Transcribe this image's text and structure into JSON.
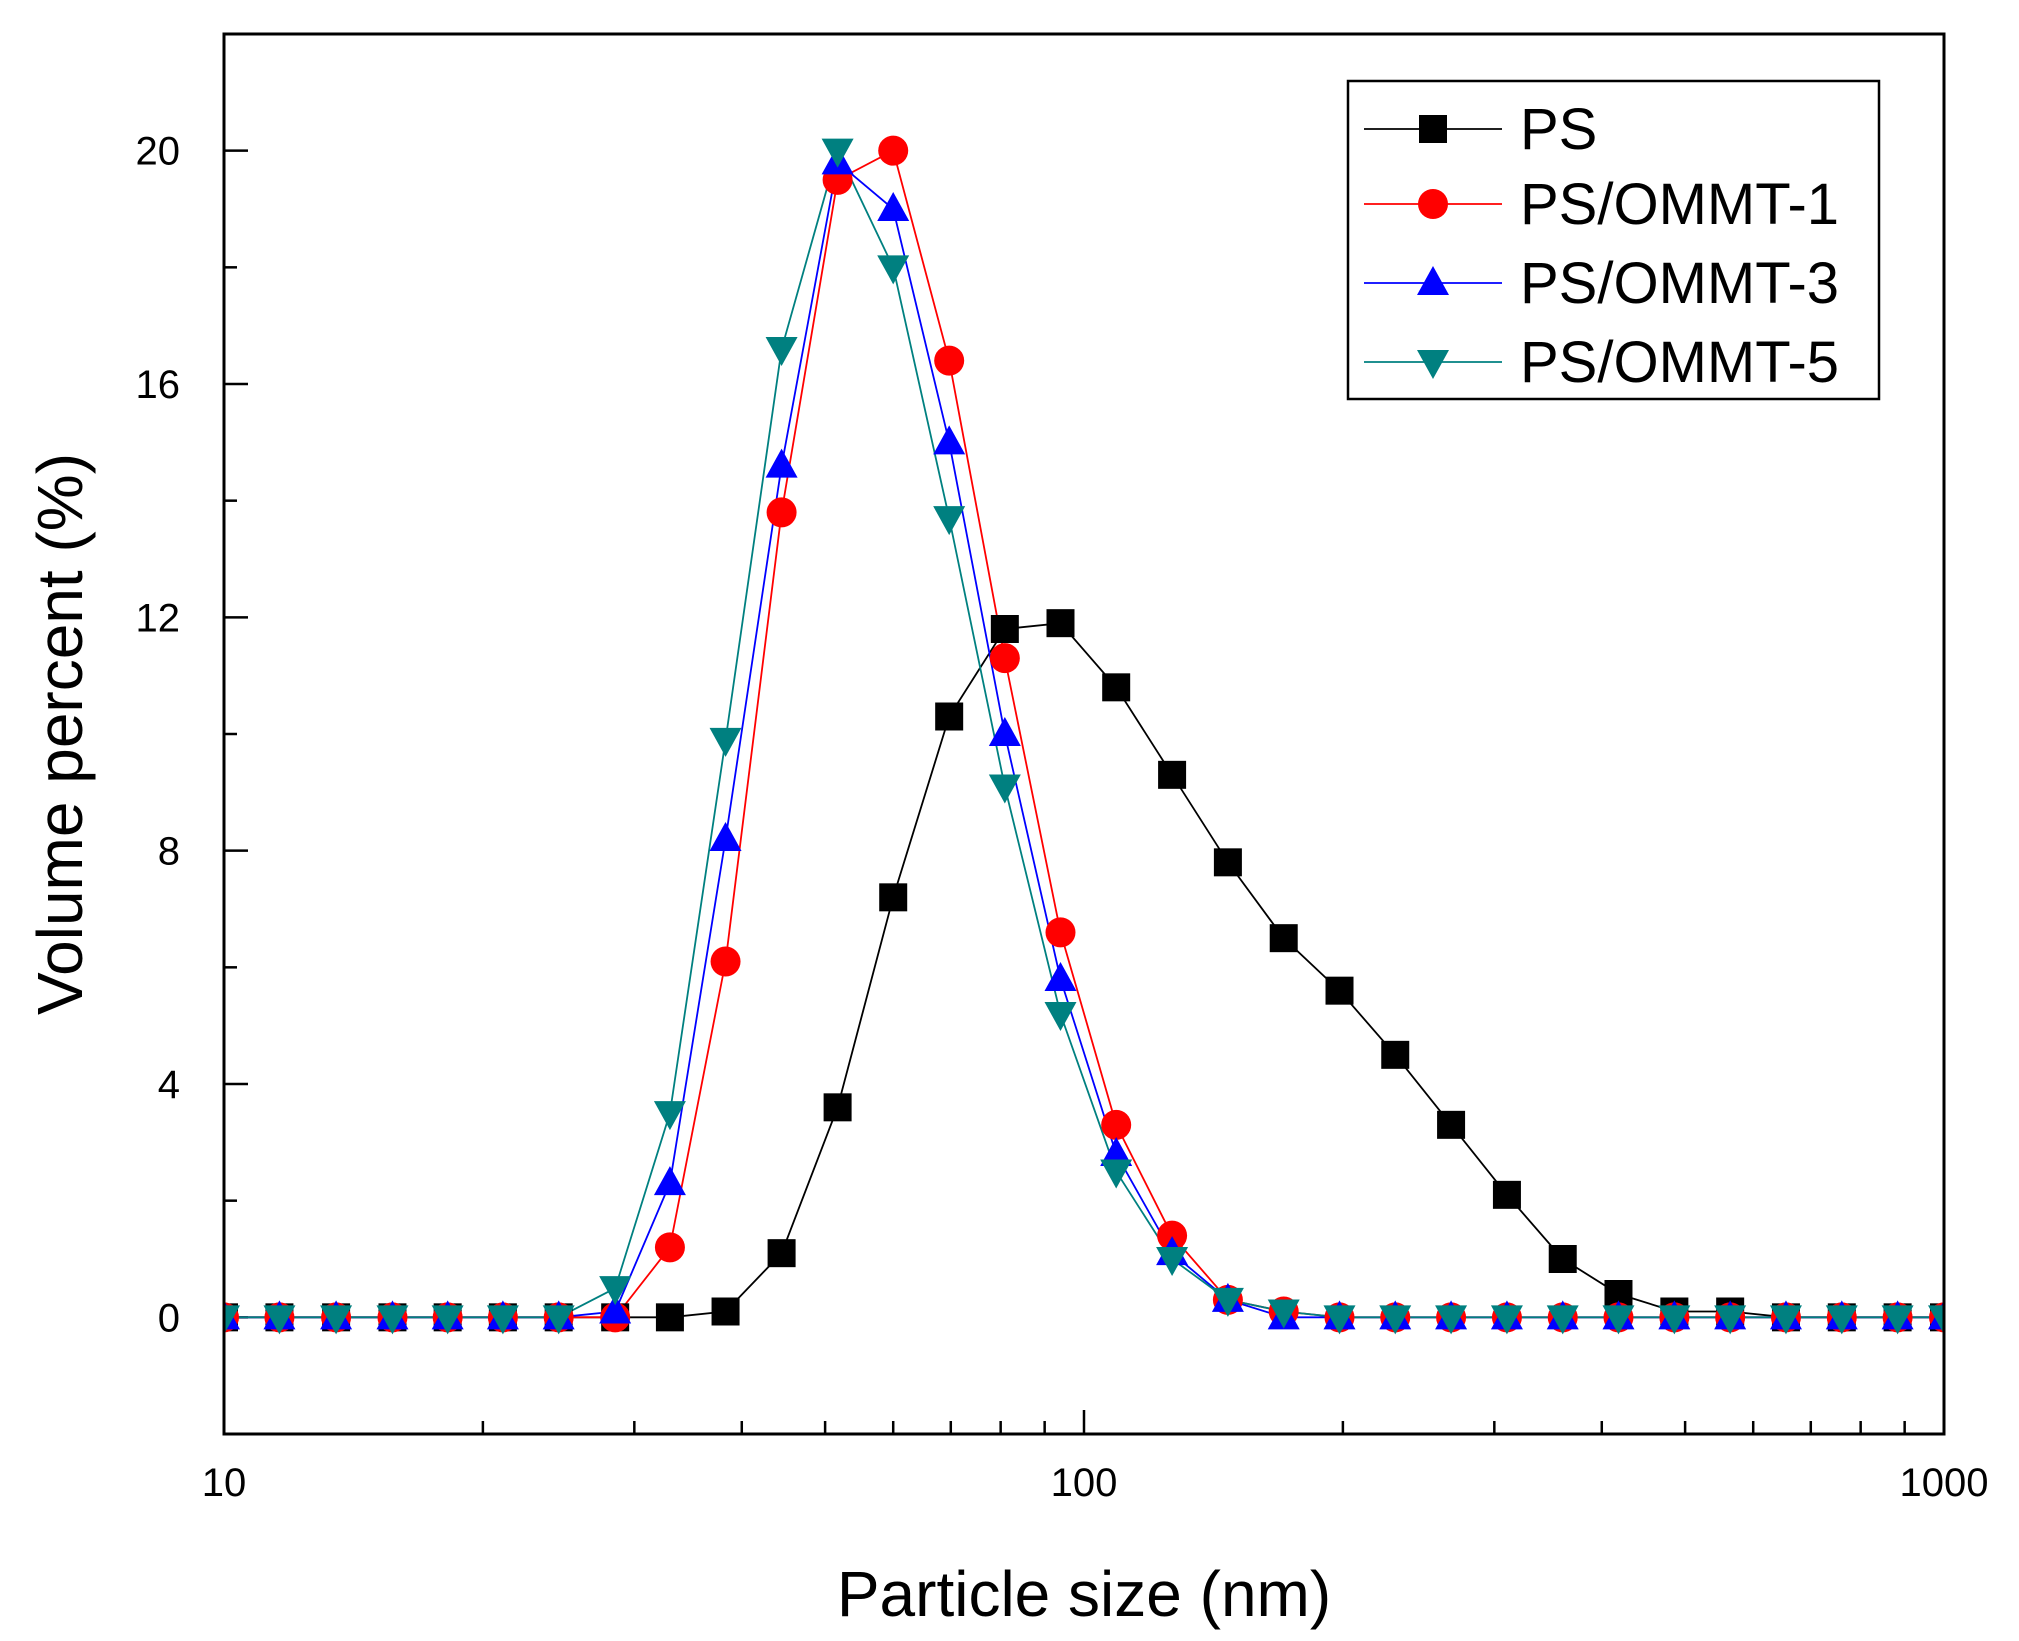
{
  "chart_data": {
    "type": "line",
    "title": "",
    "xlabel": "Particle size (nm)",
    "ylabel": "Volume percent (%)",
    "xscale": "log",
    "xlim": [
      10,
      1000
    ],
    "ylim": [
      -2,
      22
    ],
    "xticks": [
      10,
      100,
      1000
    ],
    "xtick_labels": [
      "10",
      "100",
      "1000"
    ],
    "yticks": [
      0,
      4,
      8,
      12,
      16,
      20
    ],
    "ytick_labels": [
      "0",
      "4",
      "8",
      "12",
      "16",
      "20"
    ],
    "grid": false,
    "legend_position": "top-right",
    "x": [
      10,
      11.6,
      13.5,
      15.7,
      18.2,
      21.1,
      24.5,
      28.5,
      33,
      38.3,
      44.5,
      51.7,
      60,
      69.7,
      80.9,
      93.9,
      109,
      126.6,
      147,
      170.7,
      198.2,
      230.1,
      267.2,
      310.3,
      360.3,
      418.3,
      485.8,
      564.1,
      655,
      760.6,
      883.2,
      1000
    ],
    "series": [
      {
        "name": "PS",
        "color": "#000000",
        "marker": "square",
        "values": [
          0,
          0,
          0,
          0,
          0,
          0,
          0,
          0,
          0,
          0.1,
          1.1,
          3.6,
          7.2,
          10.3,
          11.8,
          11.9,
          10.8,
          9.3,
          7.8,
          6.5,
          5.6,
          4.5,
          3.3,
          2.1,
          1.0,
          0.4,
          0.1,
          0.1,
          0,
          0,
          0,
          0
        ]
      },
      {
        "name": "PS/OMMT-1",
        "color": "#ff0000",
        "marker": "circle",
        "values": [
          0,
          0,
          0,
          0,
          0,
          0,
          0,
          0,
          1.2,
          6.1,
          13.8,
          19.5,
          20.0,
          16.4,
          11.3,
          6.6,
          3.3,
          1.4,
          0.3,
          0.1,
          0,
          0,
          0,
          0,
          0,
          0,
          0,
          0,
          0,
          0,
          0,
          0
        ]
      },
      {
        "name": "PS/OMMT-3",
        "color": "#0000ff",
        "marker": "triangle-up",
        "values": [
          0,
          0,
          0,
          0,
          0,
          0,
          0,
          0.1,
          2.3,
          8.2,
          14.6,
          19.8,
          19.0,
          15.0,
          10.0,
          5.8,
          2.8,
          1.1,
          0.3,
          0,
          0,
          0,
          0,
          0,
          0,
          0,
          0,
          0,
          0,
          0,
          0,
          0
        ]
      },
      {
        "name": "PS/OMMT-5",
        "color": "#008080",
        "marker": "triangle-down",
        "values": [
          0,
          0,
          0,
          0,
          0,
          0,
          0,
          0.5,
          3.5,
          9.9,
          16.6,
          20.0,
          18.0,
          13.7,
          9.1,
          5.2,
          2.5,
          1.0,
          0.3,
          0.1,
          0,
          0,
          0,
          0,
          0,
          0,
          0,
          0,
          0,
          0,
          0,
          0
        ]
      }
    ]
  }
}
